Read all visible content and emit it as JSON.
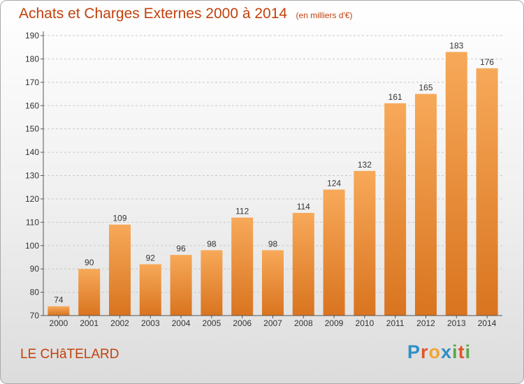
{
  "header": {
    "title": "Achats et Charges Externes 2000 à 2014",
    "unit": "(en milliers d'€)"
  },
  "footer": {
    "commune": "LE CHâTELARD",
    "logo_letters": [
      "P",
      "r",
      "o",
      "x",
      "i",
      "t",
      "i"
    ],
    "logo_colors": [
      "#2f8fc6",
      "#e2542a",
      "#f3a632",
      "#2f8fc6",
      "#58a847",
      "#e2542a",
      "#58a847"
    ]
  },
  "chart_data": {
    "type": "bar",
    "title": "Achats et Charges Externes 2000 à 2014",
    "subtitle": "(en milliers d'€)",
    "categories": [
      "2000",
      "2001",
      "2002",
      "2003",
      "2004",
      "2005",
      "2006",
      "2007",
      "2008",
      "2009",
      "2010",
      "2011",
      "2012",
      "2013",
      "2014"
    ],
    "values": [
      74,
      90,
      109,
      92,
      96,
      98,
      112,
      98,
      114,
      124,
      132,
      161,
      165,
      183,
      176
    ],
    "ylim": [
      70,
      190
    ],
    "yticks": [
      70,
      80,
      90,
      100,
      110,
      120,
      130,
      140,
      150,
      160,
      170,
      180,
      190
    ],
    "grid": true,
    "colors": {
      "bar_light": "#f7a959",
      "bar_dark": "#d9741f",
      "text": "#c2410c",
      "axis": "#555555",
      "grid": "#c8c8c8"
    }
  }
}
